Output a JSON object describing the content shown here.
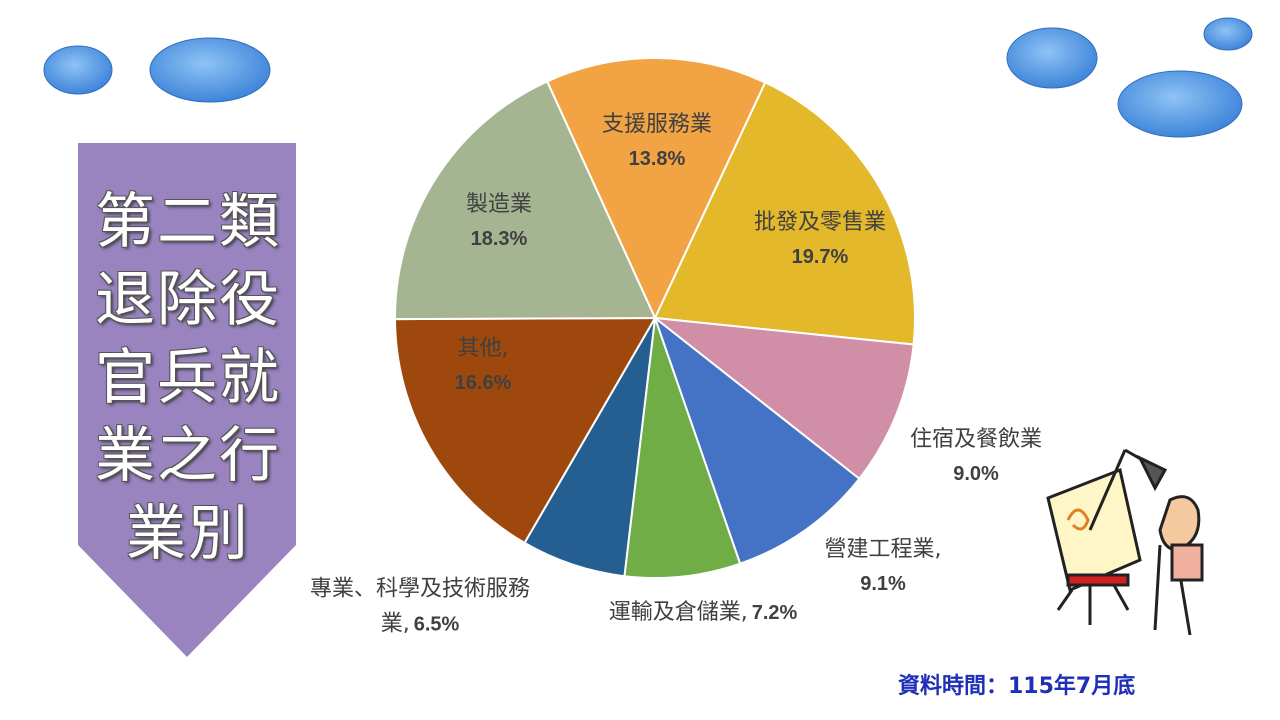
{
  "chart_data": {
    "type": "pie",
    "title": "第二類退除役官兵就業之行業別",
    "categories": [
      "支援服務業",
      "批發及零售業",
      "住宿及餐飲業",
      "營建工程業,",
      "運輸及倉儲業,",
      "專業、科學及技術服務業,",
      "其他,",
      "製造業"
    ],
    "values": [
      13.8,
      19.7,
      9.0,
      9.1,
      7.2,
      6.5,
      16.6,
      18.3
    ],
    "value_labels": [
      "13.8%",
      "19.7%",
      "9.0%",
      "9.1%",
      "7.2%",
      "6.5%",
      "16.6%",
      "18.3%"
    ],
    "colors": [
      "#f2a444",
      "#e3b92b",
      "#d08fa6",
      "#4472c4",
      "#70ad47",
      "#255e91",
      "#9e480e",
      "#a5b592"
    ],
    "annotation": "資料時間：115年7月底"
  }
}
